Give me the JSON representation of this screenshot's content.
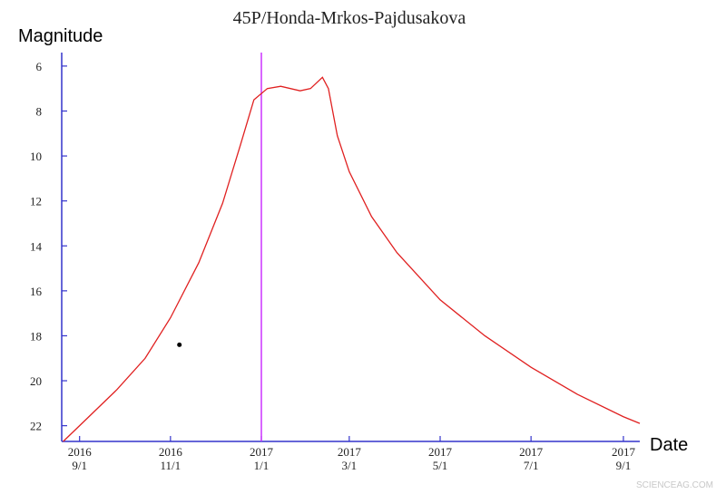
{
  "chart_data": {
    "type": "line",
    "title": "45P/Honda-Mrkos-Pajdusakova",
    "y_label": "Magnitude",
    "x_label": "Date",
    "watermark": "SCIENCEAG.COM",
    "xlim": [
      "2016-08-20",
      "2017-09-12"
    ],
    "ylim": [
      22.7,
      5.4
    ],
    "xticks": [
      {
        "value": "2016-09-01",
        "label": "2016\n9/1"
      },
      {
        "value": "2016-11-01",
        "label": "2016\n11/1"
      },
      {
        "value": "2017-01-01",
        "label": "2017\n1/1"
      },
      {
        "value": "2017-03-01",
        "label": "2017\n3/1"
      },
      {
        "value": "2017-05-01",
        "label": "2017\n5/1"
      },
      {
        "value": "2017-07-01",
        "label": "2017\n7/1"
      },
      {
        "value": "2017-09-01",
        "label": "2017\n9/1"
      }
    ],
    "yticks": [
      6,
      8,
      10,
      12,
      14,
      16,
      18,
      20,
      22
    ],
    "axis_color": "#3333cc",
    "series": [
      {
        "color": "#e02020",
        "x": [
          "2016-08-21",
          "2016-09-01",
          "2016-09-26",
          "2016-10-15",
          "2016-11-01",
          "2016-11-20",
          "2016-12-06",
          "2016-12-18",
          "2016-12-27",
          "2017-01-05",
          "2017-01-14",
          "2017-01-27",
          "2017-02-03",
          "2017-02-11",
          "2017-02-15",
          "2017-02-21",
          "2017-03-01",
          "2017-03-16",
          "2017-04-02",
          "2017-05-01",
          "2017-05-31",
          "2017-07-01",
          "2017-08-01",
          "2017-09-01",
          "2017-09-12"
        ],
        "values": [
          22.7,
          22.0,
          20.4,
          19.0,
          17.2,
          14.75,
          12.1,
          9.5,
          7.5,
          7.0,
          6.9,
          7.1,
          7.0,
          6.5,
          7.0,
          9.1,
          10.7,
          12.7,
          14.3,
          16.4,
          18.0,
          19.4,
          20.6,
          21.6,
          21.9
        ]
      }
    ],
    "vline": {
      "x": "2017-01-01",
      "color": "#cc33ff"
    },
    "points": [
      {
        "x": "2016-11-07",
        "value": 18.4,
        "color": "#000000"
      }
    ]
  }
}
